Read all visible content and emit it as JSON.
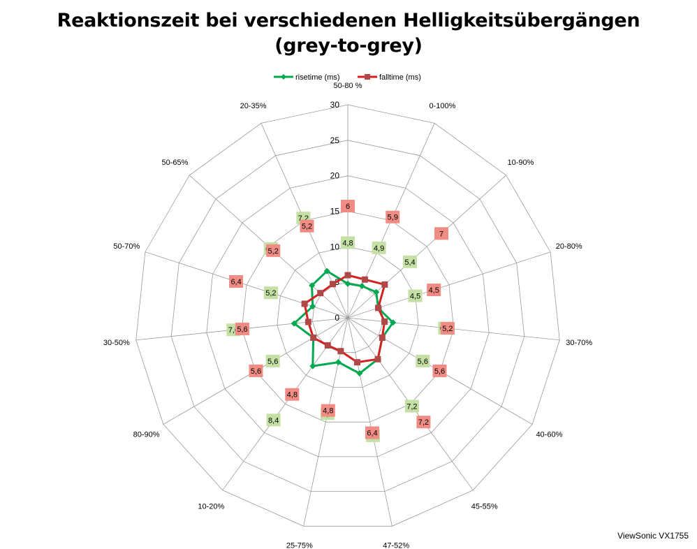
{
  "chart_data": {
    "type": "radar",
    "title": "Reaktionszeit bei verschiedenen Helligkeitsübergängen",
    "subtitle": "(grey-to-grey)",
    "categories": [
      "50-80 %",
      "0-100%",
      "10-90%",
      "20-80%",
      "30-70%",
      "40-60%",
      "45-55%",
      "47-52%",
      "25-75%",
      "10-20%",
      "80-90%",
      "30-50%",
      "50-70%",
      "50-65%",
      "20-35%"
    ],
    "radial_ticks": [
      "0",
      "5",
      "10",
      "15",
      "20",
      "25",
      "30"
    ],
    "rlim": [
      0,
      30
    ],
    "grid": true,
    "legend_position": "top",
    "series": [
      {
        "name": "risetime (ms)",
        "color": "#00a84f",
        "label_bg": "#c4e0a4",
        "values": [
          4.8,
          4.9,
          5.4,
          4.5,
          6.4,
          5.6,
          7.2,
          8,
          6.4,
          8.4,
          5.6,
          7.6,
          5.2,
          6.8,
          7.2
        ],
        "labels": [
          "4,8",
          "4,9",
          "5,4",
          "4,5",
          "6,4",
          "5,6",
          "7,2",
          "8",
          "6,4",
          "8,4",
          "5,6",
          "7,6",
          "5,2",
          "6,8",
          "7,2"
        ]
      },
      {
        "name": "falltime (ms)",
        "color": "#d42020",
        "label_bg": "#f08c84",
        "values": [
          6,
          5.9,
          7,
          4.5,
          5.2,
          5.6,
          7.2,
          6.4,
          4.8,
          4.8,
          5.6,
          5.6,
          6.4,
          5.2,
          5.2
        ],
        "labels": [
          "6",
          "5,9",
          "7",
          "4,5",
          "5,2",
          "5,6",
          "7,2",
          "6,4",
          "4,8",
          "4,8",
          "5,6",
          "5,6",
          "6,4",
          "5,2",
          "5,2"
        ]
      }
    ]
  },
  "watermark": "ViewSonic VX1755"
}
